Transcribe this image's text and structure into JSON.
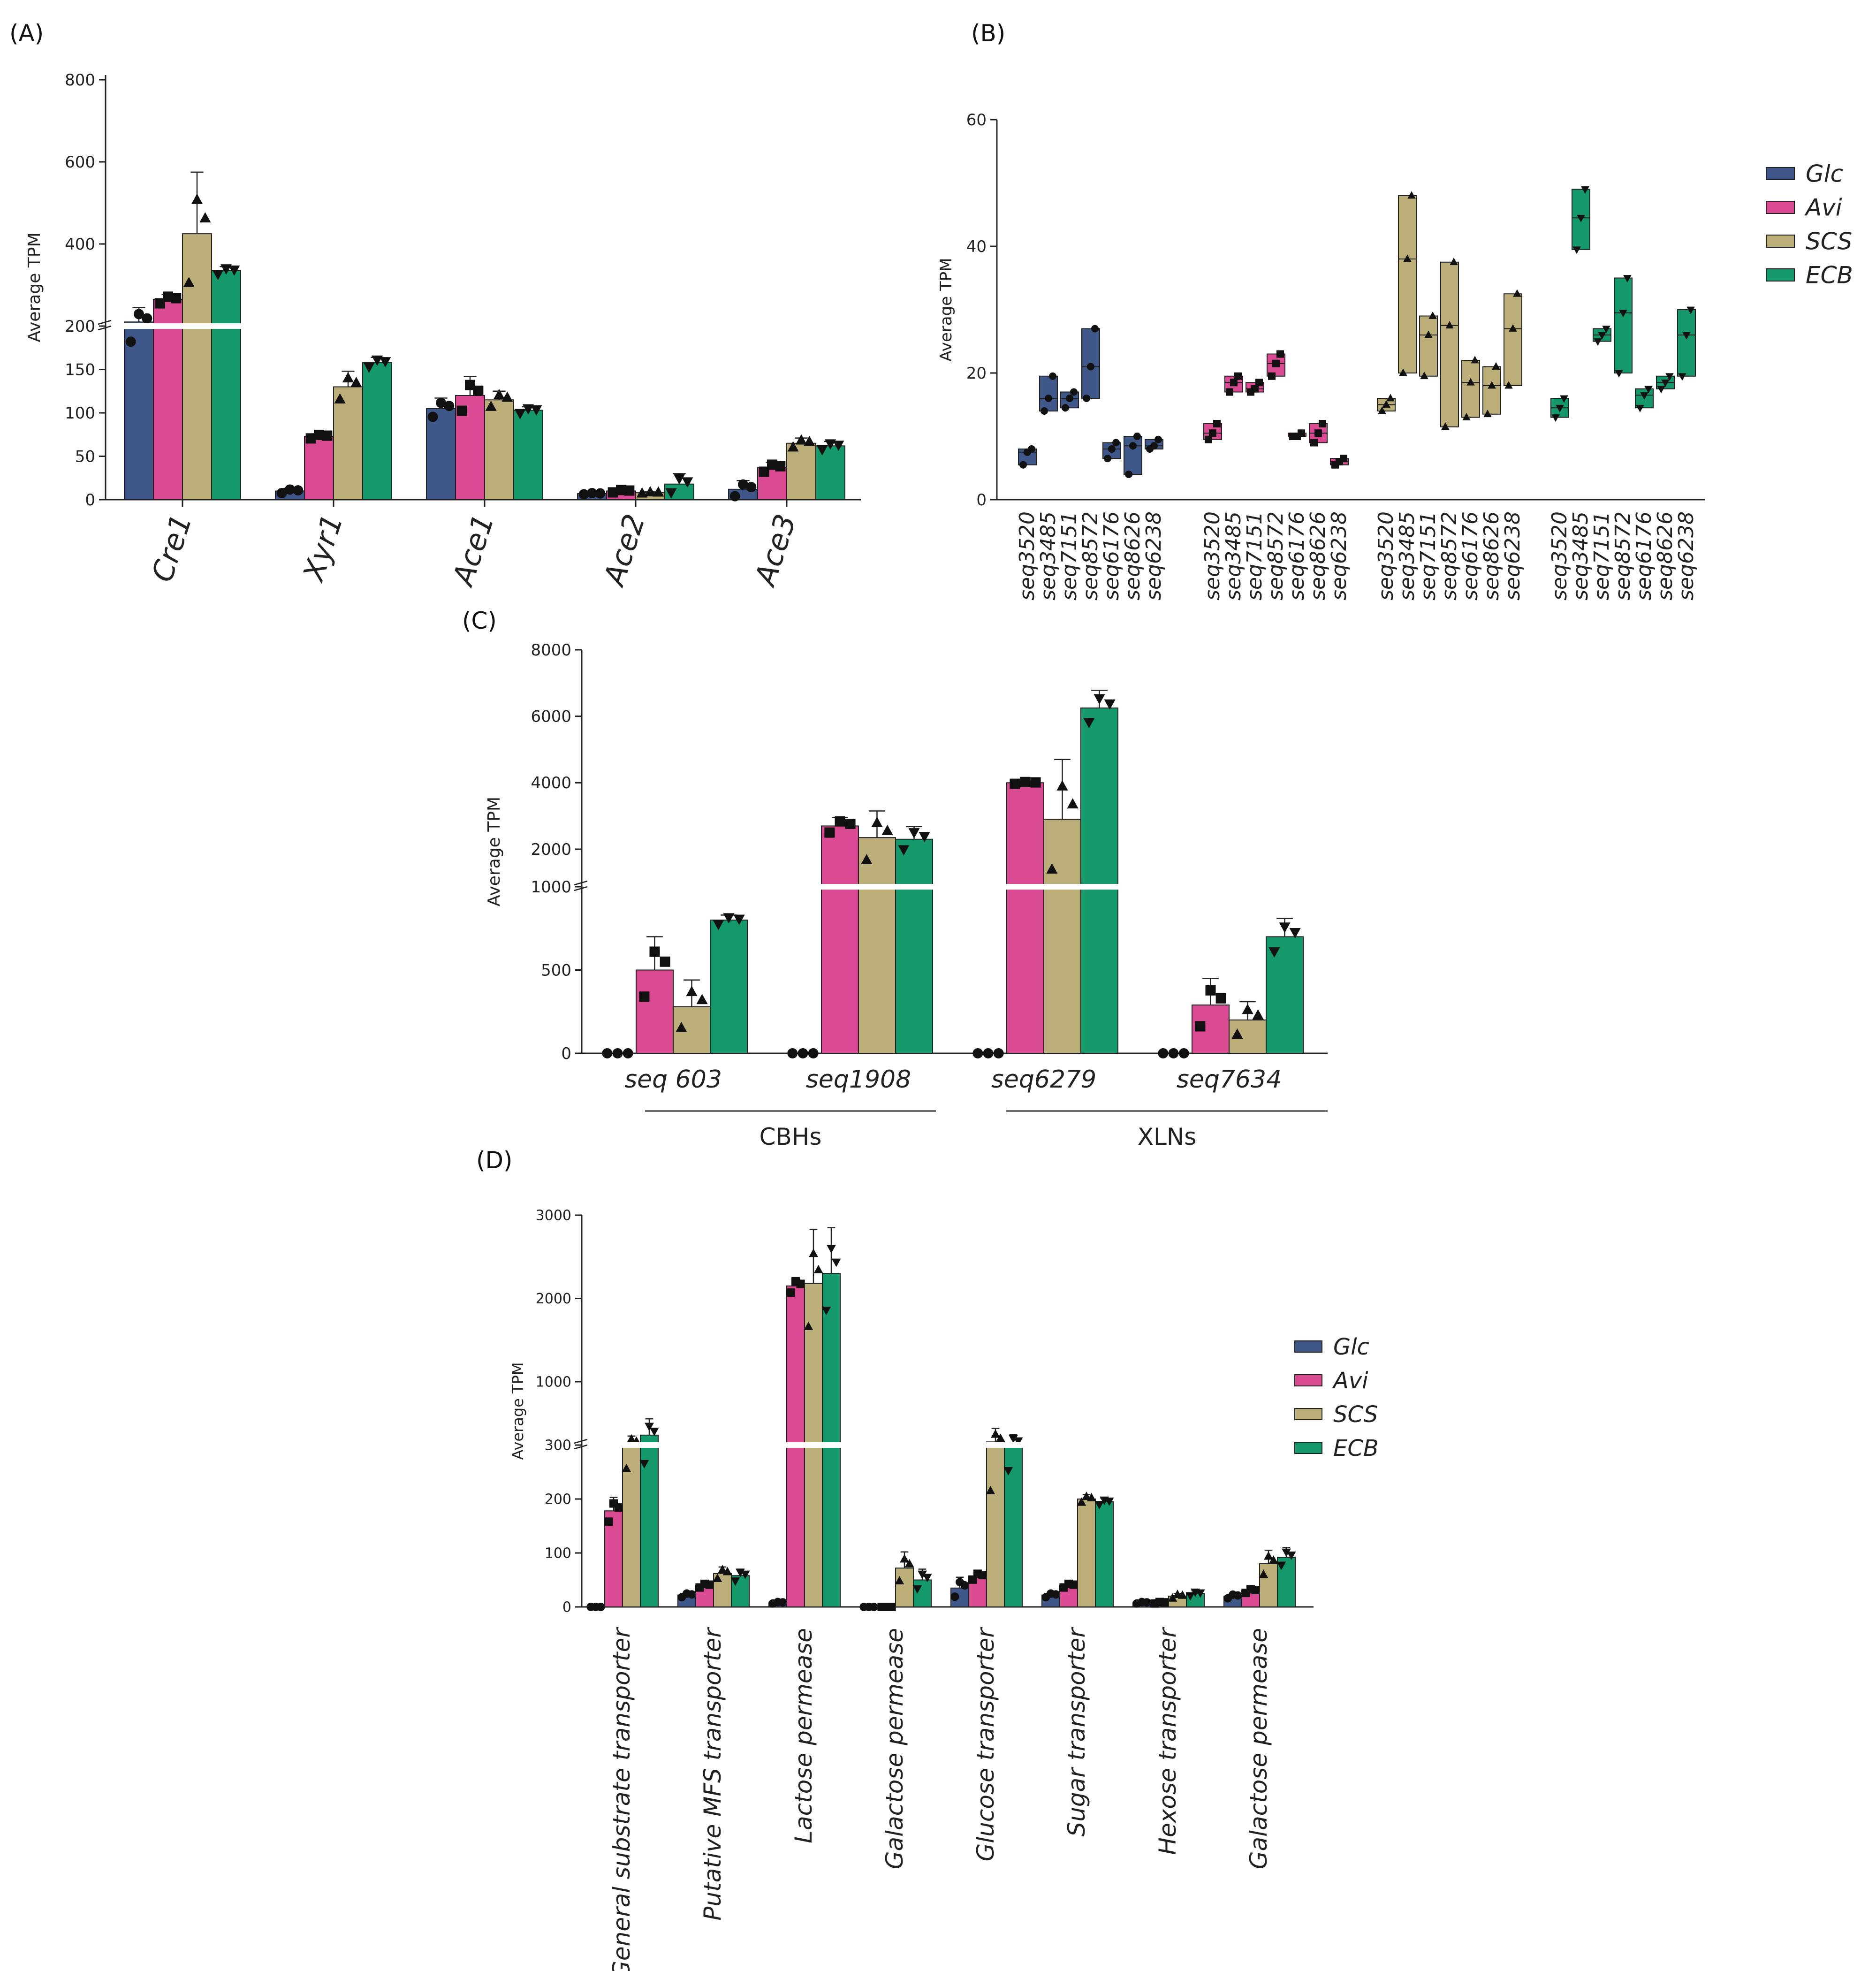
{
  "colors": {
    "Glc": "#40578a",
    "Avi": "#d94a93",
    "SCS": "#bcae78",
    "ECB": "#15996a"
  },
  "legend": [
    {
      "name": "Glc",
      "color": "#40578a"
    },
    {
      "name": "Avi",
      "color": "#d94a93"
    },
    {
      "name": "SCS",
      "color": "#bcae78"
    },
    {
      "name": "ECB",
      "color": "#15996a"
    }
  ],
  "chart_data": [
    {
      "panel": "(A)",
      "type": "bar",
      "ylabel": "Average TPM",
      "y_ticks_upper": [
        "800",
        "600",
        "400",
        "200"
      ],
      "y_ticks_lower": [
        "150",
        "100",
        "50",
        "0"
      ],
      "break_at": 200,
      "categories": [
        "Cre1",
        "Xyr1",
        "Ace1",
        "Ace2",
        "Ace3"
      ],
      "series": [
        {
          "name": "Glc",
          "values": [
            210,
            10,
            105,
            7,
            12
          ],
          "errors": [
            35,
            3,
            12,
            1,
            10
          ]
        },
        {
          "name": "Avi",
          "values": [
            265,
            73,
            120,
            10,
            37
          ],
          "errors": [
            12,
            3,
            22,
            2,
            6
          ]
        },
        {
          "name": "SCS",
          "values": [
            425,
            130,
            115,
            8,
            65
          ],
          "errors": [
            150,
            18,
            10,
            1,
            6
          ]
        },
        {
          "name": "ECB",
          "values": [
            335,
            158,
            103,
            18,
            62
          ],
          "errors": [
            10,
            6,
            4,
            12,
            5
          ]
        }
      ]
    },
    {
      "panel": "(B)",
      "type": "box",
      "ylabel": "Average TPM",
      "y_ticks": [
        "0",
        "20",
        "40",
        "60"
      ],
      "ylim": [
        0,
        60
      ],
      "genes": [
        "seq3520",
        "seq3485",
        "seq7151",
        "seq8572",
        "seq6176",
        "seq8626",
        "seq6238"
      ],
      "groups": [
        {
          "name": "Glc",
          "boxes": [
            [
              5.5,
              7.5,
              8
            ],
            [
              14,
              16,
              19.5
            ],
            [
              14.5,
              16,
              17
            ],
            [
              16,
              21,
              27
            ],
            [
              6.5,
              8,
              9
            ],
            [
              4,
              8.5,
              10
            ],
            [
              8,
              8.5,
              9.5
            ]
          ]
        },
        {
          "name": "Avi",
          "boxes": [
            [
              9.5,
              10.5,
              12
            ],
            [
              17,
              18.5,
              19.5
            ],
            [
              17,
              17.5,
              18.5
            ],
            [
              19.5,
              21.5,
              23
            ],
            [
              10,
              10,
              10.5
            ],
            [
              9,
              10.5,
              12
            ],
            [
              5.5,
              6,
              6.5
            ]
          ]
        },
        {
          "name": "SCS",
          "boxes": [
            [
              14,
              15,
              16
            ],
            [
              20,
              38,
              48
            ],
            [
              19.5,
              26,
              29
            ],
            [
              11.5,
              27.5,
              37.5
            ],
            [
              13,
              18.5,
              22
            ],
            [
              13.5,
              18,
              21
            ],
            [
              18,
              27,
              32.5
            ]
          ]
        },
        {
          "name": "ECB",
          "boxes": [
            [
              13,
              14.5,
              16
            ],
            [
              39.5,
              44.5,
              49
            ],
            [
              25,
              26,
              27
            ],
            [
              20,
              29.5,
              35
            ],
            [
              14.5,
              16.5,
              17.5
            ],
            [
              17.5,
              18.5,
              19.5
            ],
            [
              19.5,
              26,
              30
            ]
          ]
        }
      ]
    },
    {
      "panel": "(C)",
      "type": "bar",
      "ylabel": "Average TPM",
      "y_ticks_upper": [
        "8000",
        "6000",
        "4000",
        "2000"
      ],
      "y_ticks_lower": [
        "1000",
        "500",
        "0"
      ],
      "break_at": 1000,
      "categories": [
        "seq 603",
        "seq1908",
        "seq6279",
        "seq7634"
      ],
      "groups": [
        {
          "label": "CBHs",
          "members": [
            0,
            1
          ]
        },
        {
          "label": "XLNs",
          "members": [
            2,
            3
          ]
        }
      ],
      "series": [
        {
          "name": "Glc",
          "values": [
            0,
            0,
            0,
            0
          ],
          "errors": [
            0,
            0,
            0,
            0
          ]
        },
        {
          "name": "Avi",
          "values": [
            500,
            2700,
            4000,
            290
          ],
          "errors": [
            200,
            250,
            40,
            160
          ]
        },
        {
          "name": "SCS",
          "values": [
            280,
            2350,
            2900,
            200
          ],
          "errors": [
            160,
            800,
            1800,
            110
          ]
        },
        {
          "name": "ECB",
          "values": [
            800,
            2300,
            6250,
            700
          ],
          "errors": [
            30,
            380,
            530,
            110
          ]
        }
      ]
    },
    {
      "panel": "(D)",
      "type": "bar",
      "ylabel": "Average TPM",
      "y_ticks_upper": [
        "3000",
        "2000",
        "1000"
      ],
      "y_ticks_lower": [
        "300",
        "200",
        "100",
        "0"
      ],
      "break_at": 300,
      "categories": [
        "General substrate transporter",
        "Putative MFS transporter",
        "Lactose permease",
        "Galactose permease",
        "Glucose transporter",
        "Sugar transporter",
        "Hexose transporter",
        "Galactose permease"
      ],
      "series": [
        {
          "name": "Glc",
          "values": [
            0,
            22,
            8,
            0,
            35,
            22,
            8,
            20
          ],
          "errors": [
            1,
            5,
            2,
            1,
            20,
            5,
            2,
            5
          ]
        },
        {
          "name": "Avi",
          "values": [
            178,
            40,
            2150,
            0,
            57,
            40,
            8,
            30
          ],
          "errors": [
            25,
            5,
            100,
            1,
            8,
            5,
            2,
            5
          ]
        },
        {
          "name": "SCS",
          "values": [
            320,
            62,
            2180,
            72,
            335,
            200,
            20,
            80
          ],
          "errors": [
            80,
            12,
            650,
            30,
            150,
            8,
            5,
            25
          ]
        },
        {
          "name": "ECB",
          "values": [
            410,
            58,
            2300,
            50,
            325,
            195,
            25,
            92
          ],
          "errors": [
            180,
            12,
            550,
            20,
            90,
            6,
            5,
            18
          ]
        }
      ]
    }
  ]
}
